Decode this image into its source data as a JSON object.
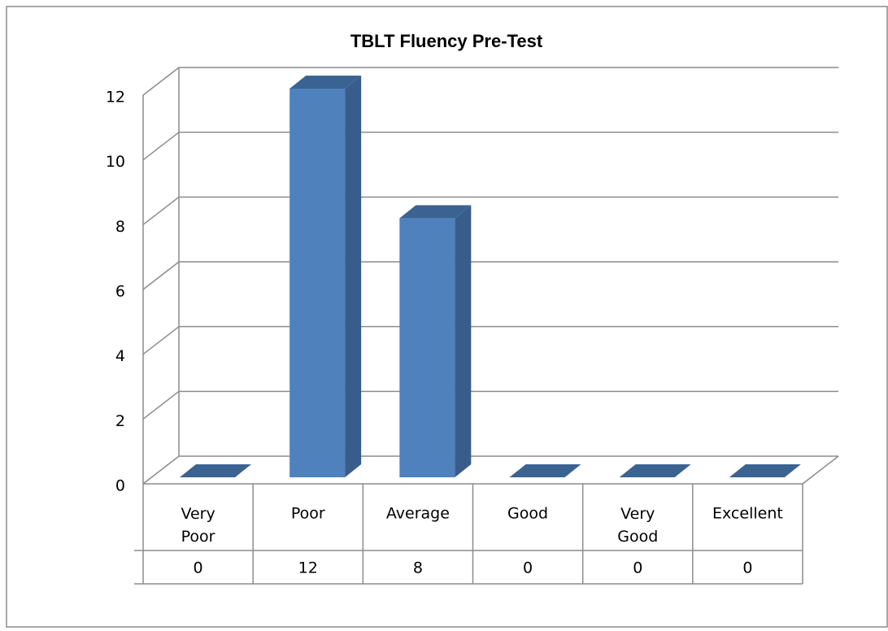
{
  "chart_data": {
    "type": "bar3d",
    "title": "TBLT Fluency Pre-Test",
    "categories": [
      "Very Poor",
      "Poor",
      "Average",
      "Good",
      "Very Good",
      "Excellent"
    ],
    "values": [
      0,
      12,
      8,
      0,
      0,
      0
    ],
    "color": "#4f81bd",
    "ylim": [
      0,
      12
    ],
    "yticks": [
      0,
      2,
      4,
      6,
      8,
      10,
      12
    ],
    "grid": true,
    "data_table": true
  }
}
